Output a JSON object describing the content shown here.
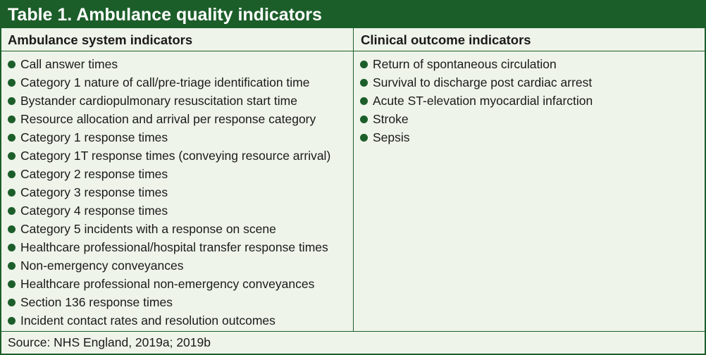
{
  "table": {
    "title": "Table 1. Ambulance quality indicators",
    "columns": [
      {
        "header": "Ambulance system indicators",
        "items": [
          "Call answer times",
          "Category 1 nature of call/pre-triage identification time",
          "Bystander cardiopulmonary resuscitation start time",
          "Resource allocation and arrival per response category",
          "Category 1 response times",
          "Category 1T response times (conveying resource arrival)",
          "Category 2 response times",
          "Category 3 response times",
          "Category 4 response times",
          "Category 5 incidents with a response on scene",
          "Healthcare professional/hospital transfer response times",
          "Non-emergency conveyances",
          "Healthcare professional non-emergency conveyances",
          "Section 136 response times",
          "Incident contact rates and resolution outcomes"
        ]
      },
      {
        "header": "Clinical outcome indicators",
        "items": [
          "Return of spontaneous circulation",
          "Survival to discharge post cardiac arrest",
          "Acute ST-elevation myocardial infarction",
          "Stroke",
          "Sepsis"
        ]
      }
    ],
    "source": "Source: NHS England, 2019a; 2019b"
  },
  "colors": {
    "accent": "#1c5e2a",
    "background": "#eef4ea"
  }
}
